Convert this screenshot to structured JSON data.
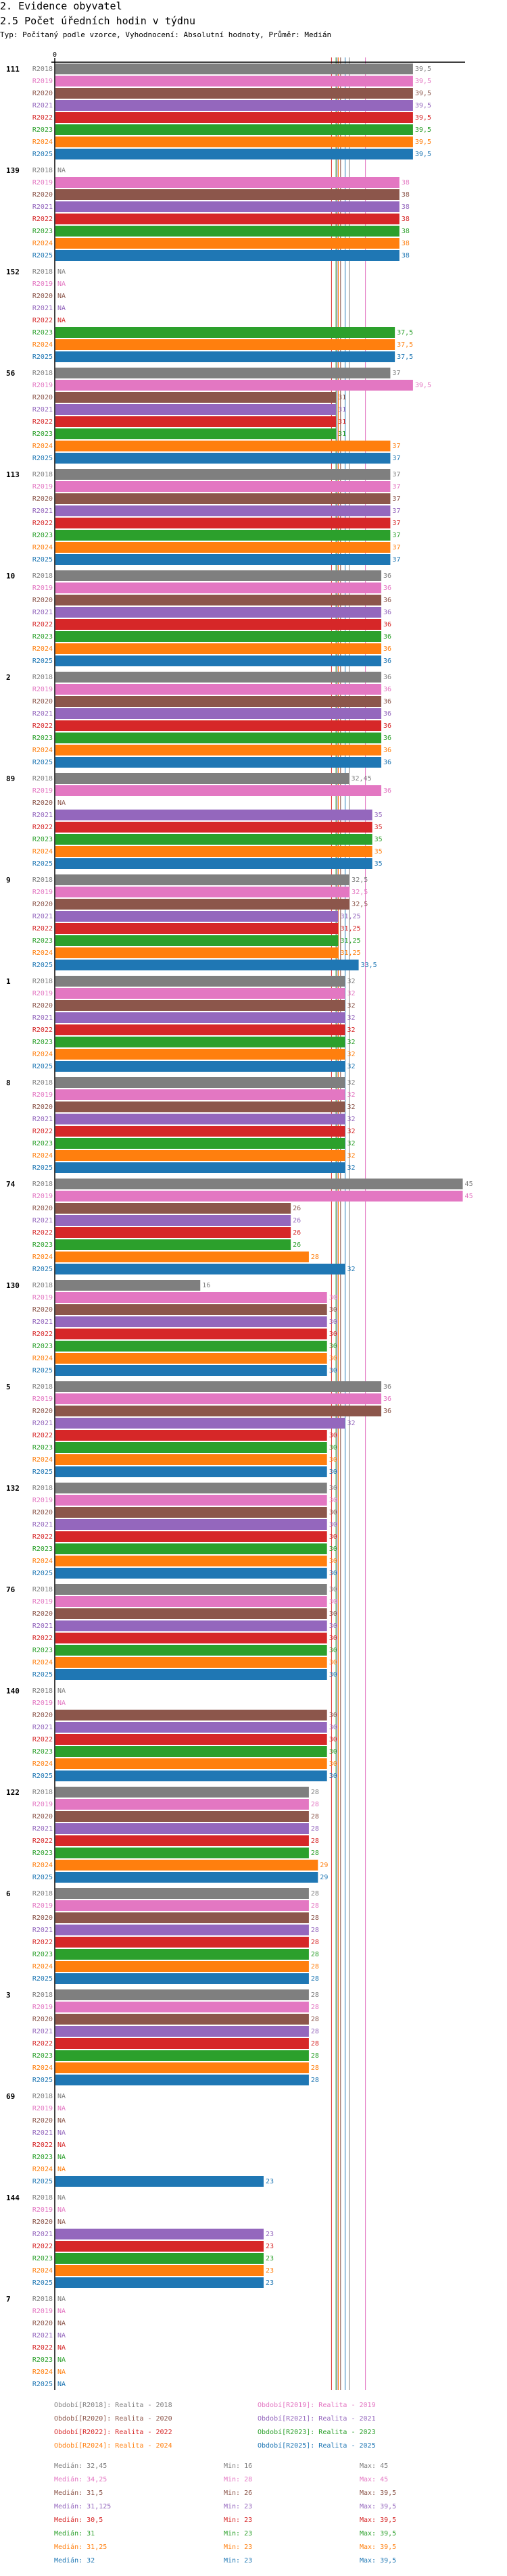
{
  "header": {
    "section": "2. Evidence obyvatel",
    "title": "2.5 Počet úředních hodin v týdnu",
    "subtitle": "Typ: Počítaný podle vzorce, Vyhodnocení: Absolutní hodnoty, Průměr: Medián"
  },
  "chart_data": {
    "type": "bar",
    "orientation": "horizontal",
    "title": "2.5 Počet úředních hodin v týdnu",
    "xlim": [
      0,
      45
    ],
    "x_tick_labels": [
      "0"
    ],
    "na_label": "NA",
    "series_names": [
      "R2018",
      "R2019",
      "R2020",
      "R2021",
      "R2022",
      "R2023",
      "R2024",
      "R2025"
    ],
    "series_colors": [
      "#7f7f7f",
      "#e377c2",
      "#8c564b",
      "#9467bd",
      "#d62728",
      "#2ca02c",
      "#ff7f0e",
      "#1f77b4"
    ],
    "groups": [
      {
        "label": "111",
        "values": [
          39.5,
          39.5,
          39.5,
          39.5,
          39.5,
          39.5,
          39.5,
          39.5
        ]
      },
      {
        "label": "139",
        "values": [
          null,
          38,
          38,
          38,
          38,
          38,
          38,
          38
        ]
      },
      {
        "label": "152",
        "values": [
          null,
          null,
          null,
          null,
          null,
          37.5,
          37.5,
          37.5
        ]
      },
      {
        "label": "56",
        "values": [
          37,
          39.5,
          31,
          31,
          31,
          31,
          37,
          37
        ]
      },
      {
        "label": "113",
        "values": [
          37,
          37,
          37,
          37,
          37,
          37,
          37,
          37
        ]
      },
      {
        "label": "10",
        "values": [
          36,
          36,
          36,
          36,
          36,
          36,
          36,
          36
        ]
      },
      {
        "label": "2",
        "values": [
          36,
          36,
          36,
          36,
          36,
          36,
          36,
          36
        ]
      },
      {
        "label": "89",
        "values": [
          32.45,
          36,
          null,
          35,
          35,
          35,
          35,
          35
        ]
      },
      {
        "label": "9",
        "values": [
          32.5,
          32.5,
          32.5,
          31.25,
          31.25,
          31.25,
          31.25,
          33.5
        ]
      },
      {
        "label": "1",
        "values": [
          32,
          32,
          32,
          32,
          32,
          32,
          32,
          32
        ]
      },
      {
        "label": "8",
        "values": [
          32,
          32,
          32,
          32,
          32,
          32,
          32,
          32
        ]
      },
      {
        "label": "74",
        "values": [
          45,
          45,
          26,
          26,
          26,
          26,
          28,
          32
        ]
      },
      {
        "label": "130",
        "values": [
          16,
          30,
          30,
          30,
          30,
          30,
          30,
          30
        ]
      },
      {
        "label": "5",
        "values": [
          36,
          36,
          36,
          32,
          30,
          30,
          30,
          30
        ]
      },
      {
        "label": "132",
        "values": [
          30,
          30,
          30,
          30,
          30,
          30,
          30,
          30
        ]
      },
      {
        "label": "76",
        "values": [
          30,
          30,
          30,
          30,
          30,
          30,
          30,
          30
        ]
      },
      {
        "label": "140",
        "values": [
          null,
          null,
          30,
          30,
          30,
          30,
          30,
          30
        ]
      },
      {
        "label": "122",
        "values": [
          28,
          28,
          28,
          28,
          28,
          28,
          29,
          29
        ]
      },
      {
        "label": "6",
        "values": [
          28,
          28,
          28,
          28,
          28,
          28,
          28,
          28
        ]
      },
      {
        "label": "3",
        "values": [
          28,
          28,
          28,
          28,
          28,
          28,
          28,
          28
        ]
      },
      {
        "label": "69",
        "values": [
          null,
          null,
          null,
          null,
          null,
          null,
          null,
          23
        ]
      },
      {
        "label": "144",
        "values": [
          null,
          null,
          null,
          23,
          23,
          23,
          23,
          23
        ]
      },
      {
        "label": "7",
        "values": [
          null,
          null,
          null,
          null,
          null,
          null,
          null,
          null
        ]
      }
    ],
    "median_lines": [
      32.45,
      34.25,
      31.5,
      31.125,
      30.5,
      31,
      31.25,
      32
    ],
    "legend": [
      "Období[R2018]: Realita - 2018",
      "Období[R2019]: Realita - 2019",
      "Období[R2020]: Realita - 2020",
      "Období[R2021]: Realita - 2021",
      "Období[R2022]: Realita - 2022",
      "Období[R2023]: Realita - 2023",
      "Období[R2024]: Realita - 2024",
      "Období[R2025]: Realita - 2025"
    ],
    "stats": [
      {
        "median": "Medián: 32,45",
        "min": "Min: 16",
        "max": "Max: 45"
      },
      {
        "median": "Medián: 34,25",
        "min": "Min: 28",
        "max": "Max: 45"
      },
      {
        "median": "Medián: 31,5",
        "min": "Min: 26",
        "max": "Max: 39,5"
      },
      {
        "median": "Medián: 31,125",
        "min": "Min: 23",
        "max": "Max: 39,5"
      },
      {
        "median": "Medián: 30,5",
        "min": "Min: 23",
        "max": "Max: 39,5"
      },
      {
        "median": "Medián: 31",
        "min": "Min: 23",
        "max": "Max: 39,5"
      },
      {
        "median": "Medián: 31,25",
        "min": "Min: 23",
        "max": "Max: 39,5"
      },
      {
        "median": "Medián: 32",
        "min": "Min: 23",
        "max": "Max: 39,5"
      }
    ]
  }
}
